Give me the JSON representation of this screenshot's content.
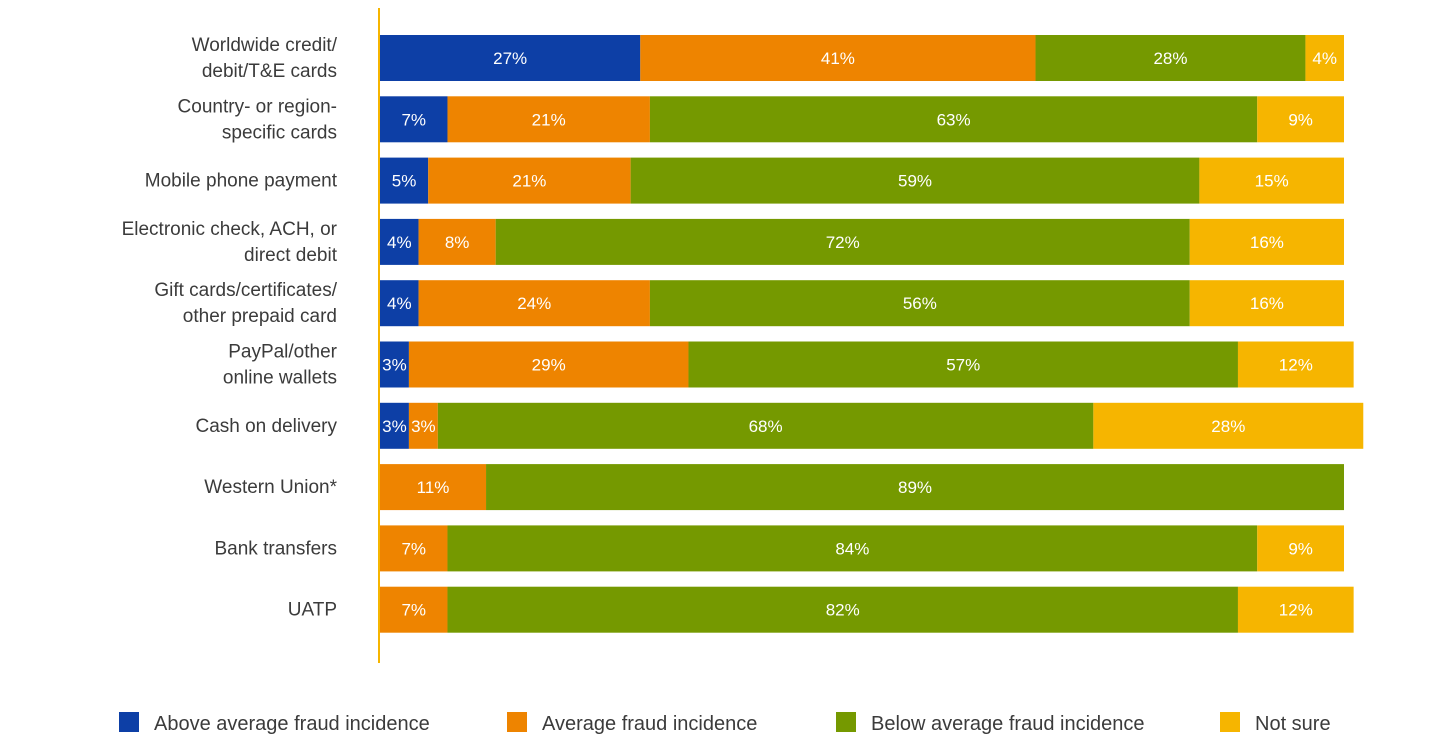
{
  "chart_data": {
    "type": "bar",
    "orientation": "horizontal",
    "stacked": true,
    "xlim": [
      0,
      100
    ],
    "grid": false,
    "legend_position": "bottom",
    "categories": [
      [
        "Worldwide credit/",
        "debit/T&E cards"
      ],
      [
        "Country- or region-",
        "specific cards"
      ],
      [
        "Mobile phone payment"
      ],
      [
        "Electronic check, ACH, or",
        "direct debit"
      ],
      [
        "Gift cards/certificates/",
        "other prepaid card"
      ],
      [
        "PayPal/other",
        "online wallets"
      ],
      [
        "Cash on delivery"
      ],
      [
        "Western Union*"
      ],
      [
        "Bank transfers"
      ],
      [
        "UATP"
      ]
    ],
    "series": [
      {
        "name": "Above average fraud incidence",
        "color": "#0d3fa6",
        "values": [
          27,
          7,
          5,
          4,
          4,
          3,
          3,
          0,
          0,
          0
        ]
      },
      {
        "name": "Average fraud incidence",
        "color": "#ee8400",
        "values": [
          41,
          21,
          21,
          8,
          24,
          29,
          3,
          11,
          7,
          7
        ]
      },
      {
        "name": "Below average fraud incidence",
        "color": "#759900",
        "values": [
          28,
          63,
          59,
          72,
          56,
          57,
          68,
          89,
          84,
          82
        ]
      },
      {
        "name": "Not sure",
        "color": "#f6b500",
        "values": [
          4,
          9,
          15,
          16,
          16,
          12,
          28,
          0,
          9,
          12
        ]
      }
    ],
    "axis_color": "#f6b500"
  }
}
